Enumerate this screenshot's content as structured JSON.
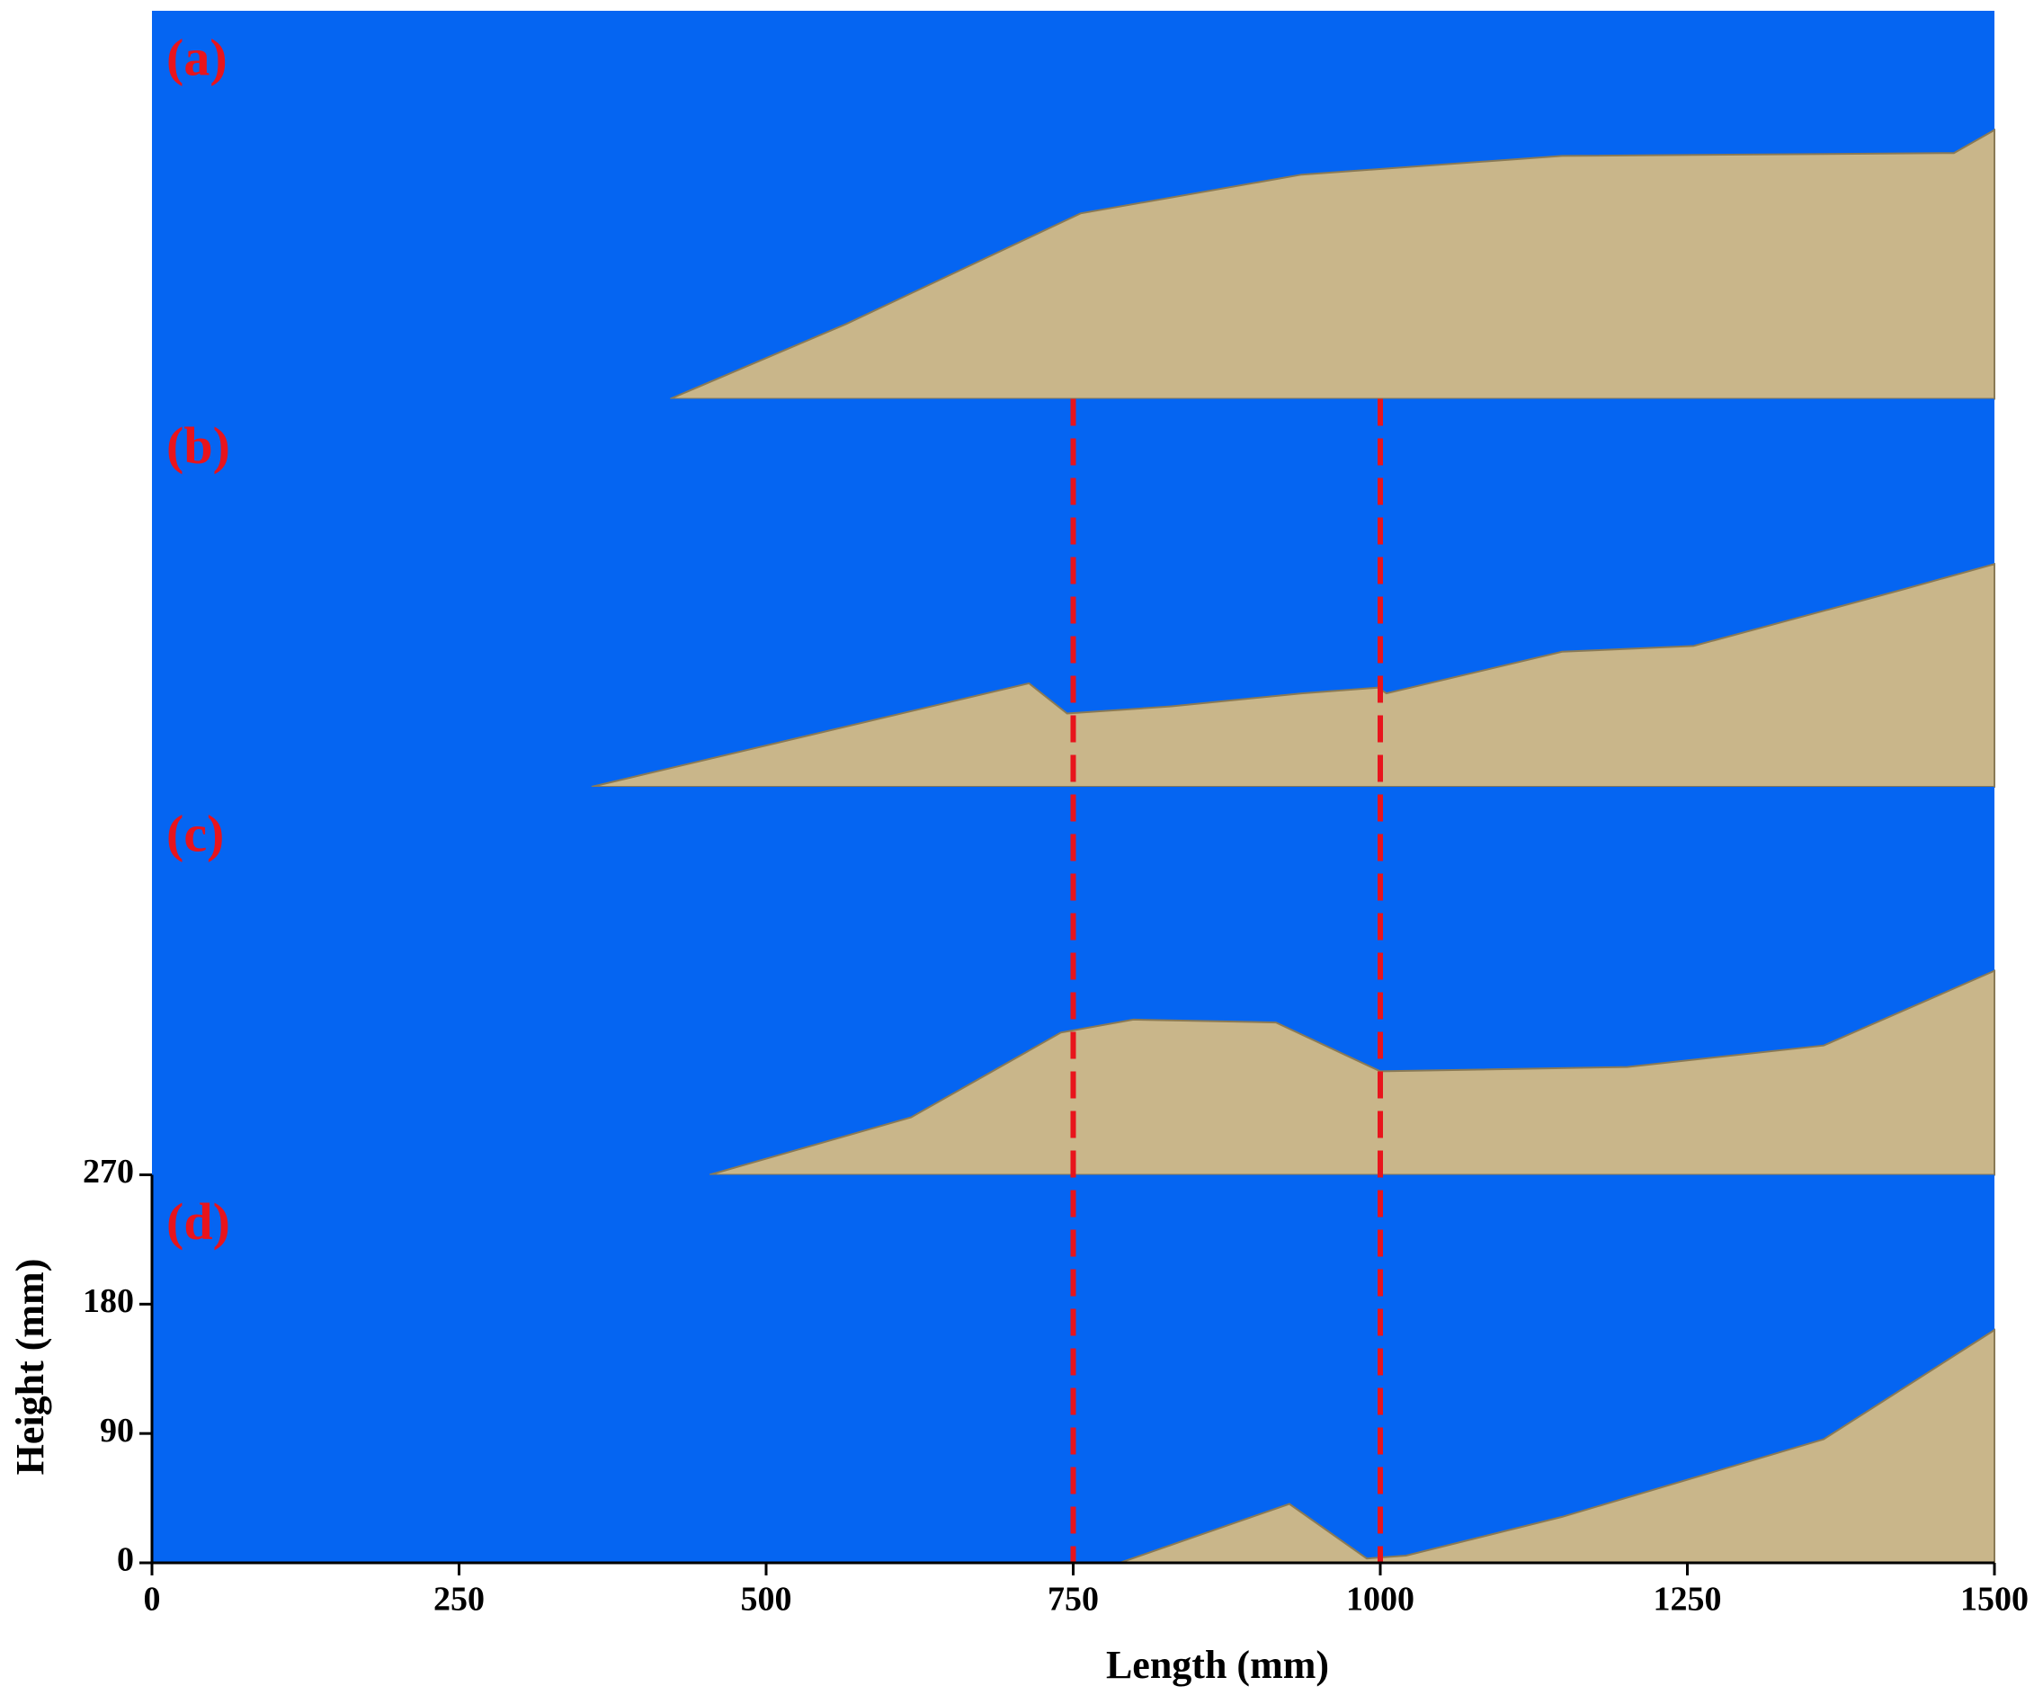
{
  "chart_data": {
    "type": "profile",
    "xlabel": "Length (mm)",
    "ylabel": "Height (mm)",
    "xlim": [
      0,
      1500
    ],
    "xticks": [
      0,
      250,
      500,
      750,
      1000,
      1250,
      1500
    ],
    "ylim": [
      0,
      270
    ],
    "yticks": [
      0,
      90,
      180,
      270
    ],
    "background_color": "#0565f2",
    "sand_color": "#c9b68a",
    "reference_lines": [
      750,
      1000
    ],
    "reference_color": "#e8141c",
    "label_color": "#e8141c",
    "series": [
      {
        "name": "(a)",
        "x": [
          422,
          565,
          756,
          936,
          1148,
          1467,
          1500
        ],
        "values": [
          0,
          52,
          129,
          156,
          169,
          171,
          187
        ]
      },
      {
        "name": "(b)",
        "x": [
          358,
          714,
          745,
          830,
          936,
          998,
          1005,
          1148,
          1255,
          1424,
          1500
        ],
        "values": [
          0,
          72,
          51,
          56,
          65,
          69,
          65,
          94,
          98,
          137,
          155
        ]
      },
      {
        "name": "(c)",
        "x": [
          454,
          618,
          740,
          799,
          915,
          1000,
          1201,
          1361,
          1500
        ],
        "values": [
          0,
          40,
          99,
          108,
          106,
          72,
          75,
          90,
          142
        ]
      },
      {
        "name": "(d)",
        "x": [
          788,
          926,
          989,
          1021,
          1148,
          1361,
          1500
        ],
        "values": [
          0,
          41,
          3,
          5,
          32,
          86,
          162
        ]
      }
    ]
  }
}
